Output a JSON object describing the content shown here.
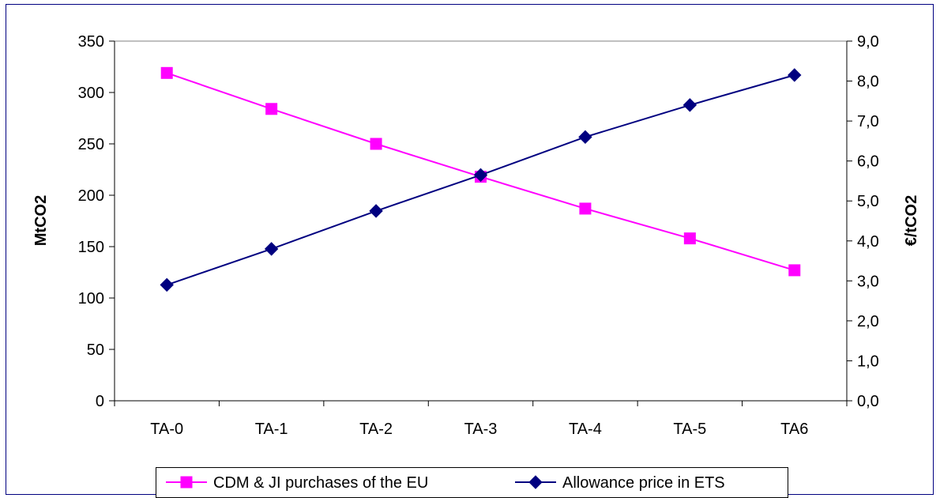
{
  "chart_data": {
    "type": "line",
    "title": "",
    "categories": [
      "TA-0",
      "TA-1",
      "TA-2",
      "TA-3",
      "TA-4",
      "TA-5",
      "TA6"
    ],
    "y_left": {
      "label": "MtCO2",
      "lim": [
        0,
        350
      ],
      "ticks": [
        0,
        50,
        100,
        150,
        200,
        250,
        300,
        350
      ],
      "tick_labels": [
        "0",
        "50",
        "100",
        "150",
        "200",
        "250",
        "300",
        "350"
      ]
    },
    "y_right": {
      "label": "€/tCO2",
      "lim": [
        0,
        9
      ],
      "ticks": [
        0,
        1,
        2,
        3,
        4,
        5,
        6,
        7,
        8,
        9
      ],
      "tick_labels": [
        "0,0",
        "1,0",
        "2,0",
        "3,0",
        "4,0",
        "5,0",
        "6,0",
        "7,0",
        "8,0",
        "9,0"
      ]
    },
    "grid": false,
    "legend_position": "bottom",
    "series": [
      {
        "name": "CDM & JI purchases of the EU",
        "axis": "left",
        "marker": "square",
        "color": "#FF00FF",
        "values": [
          319,
          284,
          250,
          218,
          187,
          158,
          127
        ]
      },
      {
        "name": "Allowance price in ETS",
        "axis": "right",
        "marker": "diamond",
        "color": "#000080",
        "values": [
          2.9,
          3.8,
          4.75,
          5.65,
          6.6,
          7.4,
          8.15
        ]
      }
    ]
  }
}
